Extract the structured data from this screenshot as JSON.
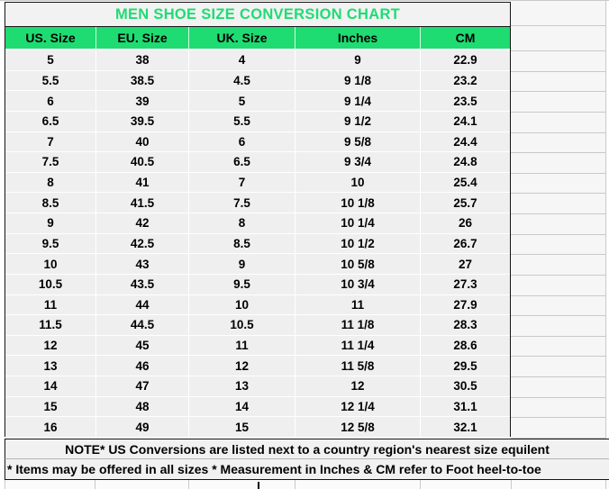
{
  "chart_data": {
    "type": "table",
    "title": "MEN SHOE SIZE CONVERSION CHART",
    "columns": [
      "US. Size",
      "EU. Size",
      "UK. Size",
      "Inches",
      "CM"
    ],
    "rows": [
      [
        "5",
        "38",
        "4",
        "9",
        "22.9"
      ],
      [
        "5.5",
        "38.5",
        "4.5",
        "9 1/8",
        "23.2"
      ],
      [
        "6",
        "39",
        "5",
        "9 1/4",
        "23.5"
      ],
      [
        "6.5",
        "39.5",
        "5.5",
        "9 1/2",
        "24.1"
      ],
      [
        "7",
        "40",
        "6",
        "9 5/8",
        "24.4"
      ],
      [
        "7.5",
        "40.5",
        "6.5",
        "9 3/4",
        "24.8"
      ],
      [
        "8",
        "41",
        "7",
        "10",
        "25.4"
      ],
      [
        "8.5",
        "41.5",
        "7.5",
        "10 1/8",
        "25.7"
      ],
      [
        "9",
        "42",
        "8",
        "10 1/4",
        "26"
      ],
      [
        "9.5",
        "42.5",
        "8.5",
        "10 1/2",
        "26.7"
      ],
      [
        "10",
        "43",
        "9",
        "10 5/8",
        "27"
      ],
      [
        "10.5",
        "43.5",
        "9.5",
        "10 3/4",
        "27.3"
      ],
      [
        "11",
        "44",
        "10",
        "11",
        "27.9"
      ],
      [
        "11.5",
        "44.5",
        "10.5",
        "11 1/8",
        "28.3"
      ],
      [
        "12",
        "45",
        "11",
        "11 1/4",
        "28.6"
      ],
      [
        "13",
        "46",
        "12",
        "11 5/8",
        "29.5"
      ],
      [
        "14",
        "47",
        "13",
        "12",
        "30.5"
      ],
      [
        "15",
        "48",
        "14",
        "12 1/4",
        "31.1"
      ],
      [
        "16",
        "49",
        "15",
        "12 5/8",
        "32.1"
      ]
    ],
    "notes": [
      "NOTE* US Conversions are listed next to a country region's nearest size equilent",
      "* Items may be offered in all sizes * Measurement in Inches & CM refer to Foot heel-to-toe"
    ],
    "layout_hints": {
      "header_position": "top",
      "grid": "on",
      "title_align": "center",
      "note1_align": "center",
      "note2_align": "left"
    }
  },
  "colors": {
    "accent_green": "#1edc72",
    "title_text": "#1edc72",
    "header_bg": "#1edc72",
    "header_text": "#000000",
    "cell_bg": "#efefef",
    "title_bg": "#f2f2f2",
    "note_bg": "#f1f1f1",
    "grid_inner": "#ffffff",
    "grid_outer_gray": "#c9c9c9",
    "table_border": "#141414",
    "cell_text": "#000000"
  }
}
